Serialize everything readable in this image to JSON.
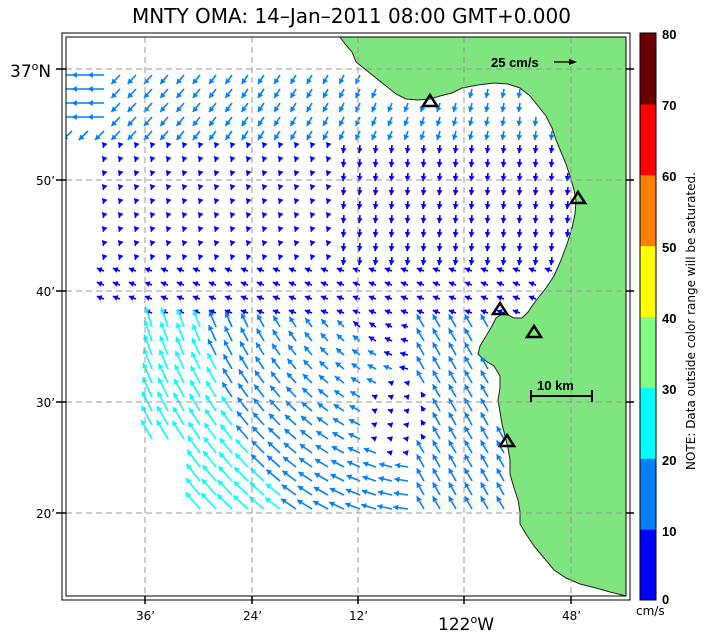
{
  "title": "MNTY OMA: 14–Jan–2011 08:00 GMT+0.000",
  "axes": {
    "lat_major": {
      "deg": "37",
      "sup": "o",
      "hemi": "N"
    },
    "lat_ticks": [
      "50’",
      "40’",
      "30’",
      "20’"
    ],
    "lon_ticks": [
      "36’",
      "24’",
      "12’",
      "48’"
    ],
    "lon_major": {
      "deg": "122",
      "sup": "o",
      "hemi": "W"
    }
  },
  "scale_vector": {
    "label": "25 cm/s"
  },
  "scale_bar": {
    "label": "10 km"
  },
  "colorbar": {
    "ticks": [
      "80",
      "70",
      "60",
      "50",
      "40",
      "30",
      "20",
      "10",
      "0"
    ],
    "unit": "cm/s",
    "colors": [
      "#6b0000",
      "#c00000",
      "#ff0000",
      "#ff8000",
      "#ffff00",
      "#80ff80",
      "#00ffff",
      "#0080ff",
      "#0000ff"
    ],
    "note": "NOTE: Data outside color range will be saturated."
  },
  "land_color": "#7fe57f",
  "stations": [
    "station-1",
    "station-2",
    "station-3",
    "station-4",
    "station-5"
  ]
}
